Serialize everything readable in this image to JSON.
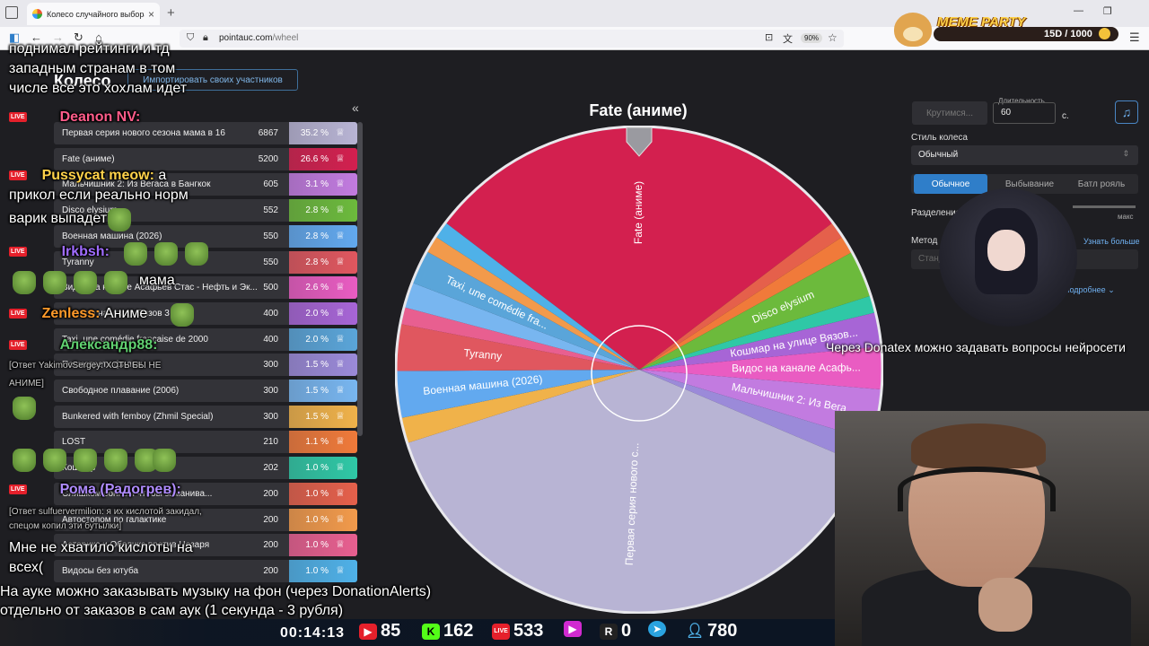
{
  "browser": {
    "tab_title": "Колесо случайного выбора – I",
    "url_host": "pointauc.com",
    "url_path": "/wheel",
    "zoom": "90%"
  },
  "page": {
    "title": "Колесо",
    "import_button": "Импортировать своих участников",
    "collapse": "«"
  },
  "participants": [
    {
      "name": "Первая серия нового сезона мама в 16",
      "amount": "6867",
      "percent": "35.2 %",
      "color": "#b8b4d4"
    },
    {
      "name": "Fate (аниме)",
      "amount": "5200",
      "percent": "26.6 %",
      "color": "#d3204f"
    },
    {
      "name": "Мальчишник 2: Из Вегаса в Бангкок",
      "amount": "605",
      "percent": "3.1 %",
      "color": "#c27be0"
    },
    {
      "name": "Disco elysium",
      "amount": "552",
      "percent": "2.8 %",
      "color": "#6cba3c"
    },
    {
      "name": "Военная машина (2026)",
      "amount": "550",
      "percent": "2.8 %",
      "color": "#62a9ef"
    },
    {
      "name": "Tyranny",
      "amount": "550",
      "percent": "2.8 %",
      "color": "#e0575f"
    },
    {
      "name": "Видос на канале Асафьев Стас - Нефть и Эк...",
      "amount": "500",
      "percent": "2.6 %",
      "color": "#e95cc2"
    },
    {
      "name": "Кошмар на улице Вязов 3",
      "amount": "400",
      "percent": "2.0 %",
      "color": "#a765d6"
    },
    {
      "name": "Taxi, une comédie française de 2000",
      "amount": "400",
      "percent": "2.0 %",
      "color": "#5aa5d9"
    },
    {
      "name": "Посмотреть фильм",
      "amount": "300",
      "percent": "1.5 %",
      "color": "#9b8ad9"
    },
    {
      "name": "Свободное плавание (2006)",
      "amount": "300",
      "percent": "1.5 %",
      "color": "#78b6f0"
    },
    {
      "name": "Bunkered with femboy (Zhmil Special)",
      "amount": "300",
      "percent": "1.5 %",
      "color": "#f0b24a"
    },
    {
      "name": "LOST",
      "amount": "210",
      "percent": "1.1 %",
      "color": "#f07a3a"
    },
    {
      "name": "Кошмар",
      "amount": "202",
      "percent": "1.0 %",
      "color": "#2fc8a6"
    },
    {
      "name": "Слишком сонный чтобы заманива...",
      "amount": "200",
      "percent": "1.0 %",
      "color": "#e5604b"
    },
    {
      "name": "Автостопом по галактике",
      "amount": "200",
      "percent": "1.0 %",
      "color": "#f29a4b"
    },
    {
      "name": "Астерикс и Обеликс против Цезаря",
      "amount": "200",
      "percent": "1.0 %",
      "color": "#e85f90"
    },
    {
      "name": "Видосы без ютуба",
      "amount": "200",
      "percent": "1.0 %",
      "color": "#4fb1e8"
    }
  ],
  "wheel": {
    "winner": "Fate (аниме)",
    "slice_labels": {
      "fate": "Fate (аниме)",
      "disco": "Disco elysium",
      "vidos": "Видос на канале Асафь...",
      "tyranny": "Tyranny",
      "taxi": "Taxi, une comédie fra...",
      "voen": "Военная машина (2026)",
      "malch": "Мальчишник 2: Из Вега...",
      "koshmar": "Кошмар на улице Вязов...",
      "pervaya": "Первая серия нового с..."
    }
  },
  "settings": {
    "spin_button": "Крутимся...",
    "duration_label": "Длительность",
    "duration_value": "60",
    "duration_unit": "с.",
    "style_label": "Стиль колеса",
    "style_value": "Обычный",
    "modes": [
      "Обычное",
      "Выбывание",
      "Батл рояль"
    ],
    "split_label": "Разделение",
    "split_max": "макс",
    "method_label": "Метод",
    "method_value": "Стандартный",
    "learn_more": "Узнать больше",
    "more": "Подробнее"
  },
  "overlay": {
    "meme_title": "MEME PARTY",
    "meme_count": "15D / 1000",
    "right_ticker": "Через Donatex можно задавать вопросы нейросети",
    "ticker_line1": "На ауке можно заказывать музыку на фон (через DonationAlerts)",
    "ticker_line2": "отдельно от заказов в сам аук (1 секунда - 3 рубля)",
    "chat": [
      {
        "name": "Deanon NV:",
        "text": "",
        "color": "#ff5c8a"
      },
      {
        "name": "Pussycat meow:",
        "text": "а",
        "color": "#ffd24a"
      },
      {
        "name": "",
        "text": "прикол если реально норм",
        "color": "#fff"
      },
      {
        "name": "",
        "text": "варик выпадет",
        "color": "#fff"
      },
      {
        "name": "Irkbsh:",
        "text": "",
        "color": "#a06cff"
      },
      {
        "name": "",
        "text": "мама",
        "color": "#fff"
      },
      {
        "name": "Zenless:",
        "text": "Аниме",
        "color": "#ff9a2a"
      },
      {
        "name": "Александр88:",
        "text": "",
        "color": "#60d070"
      },
      {
        "name": "Рома (Радогрев):",
        "text": "",
        "color": "#b08cff"
      },
      {
        "name": "",
        "text": "Мне не хватило кислоты на",
        "color": "#fff"
      },
      {
        "name": "",
        "text": "всех(",
        "color": "#fff"
      }
    ],
    "chat_top": [
      "поднимал рейтинги и тд",
      "западным странам в том",
      "числе все это хохлам идет"
    ],
    "chat_replies": [
      "[Ответ YakimovSergey: ХОТЬ БЫ НЕ",
      "АНИМЕ]",
      "[Ответ sulfuervermilion: я их кислотой закидал,",
      "спецом копил эти бутылки]"
    ],
    "stats": {
      "uptime": "00:14:13",
      "youtube": "85",
      "kick": "162",
      "vk": "533",
      "rutube": "0",
      "r": "0",
      "telegram": "",
      "viewers": "780"
    }
  }
}
